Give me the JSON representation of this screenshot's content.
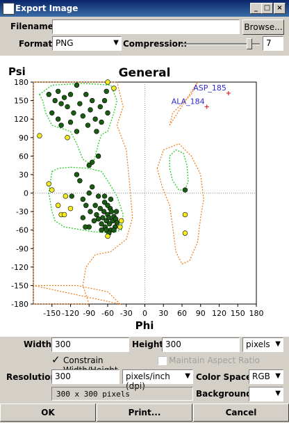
{
  "window": {
    "title": "Export Image",
    "icon": "app-icon"
  },
  "filename": {
    "label": "Filename:",
    "value": "",
    "browse_label": "Browse..."
  },
  "format": {
    "label": "Format:",
    "value": "PNG",
    "compression_label": "Compression:",
    "compression_value": "7",
    "compression_fraction": 0.9
  },
  "plot": {
    "title": "General",
    "ylabel": "Psi",
    "xlabel": "Phi",
    "xticks": [
      "-150",
      "-120",
      "-90",
      "-60",
      "-30",
      "0",
      "30",
      "60",
      "90",
      "120",
      "150",
      "180"
    ],
    "yticks": [
      "180",
      "150",
      "120",
      "90",
      "60",
      "30",
      "0",
      "-30",
      "-60",
      "-90",
      "-120",
      "-150",
      "-180"
    ],
    "outliers": [
      {
        "label": "ASP_185",
        "phi": 135,
        "psi": 162
      },
      {
        "label": "ALA_184",
        "phi": 100,
        "psi": 140
      }
    ]
  },
  "chart_data": {
    "type": "scatter",
    "title": "General",
    "xlabel": "Phi",
    "ylabel": "Psi",
    "xlim": [
      -180,
      180
    ],
    "ylim": [
      -180,
      180
    ],
    "grid": false,
    "colors": {
      "favored": "#1a5c12",
      "allowed": "#f4ea22",
      "outlier": "#e02020",
      "contour_core": "#22cc22",
      "contour_allowed": "#f08020"
    },
    "series": [
      {
        "name": "",
        "category": "favored",
        "points": [
          [
            -155,
            160
          ],
          [
            -145,
            150
          ],
          [
            -150,
            130
          ],
          [
            -140,
            165
          ],
          [
            -135,
            145
          ],
          [
            -130,
            155
          ],
          [
            -125,
            140
          ],
          [
            -120,
            160
          ],
          [
            -115,
            130
          ],
          [
            -110,
            175
          ],
          [
            -105,
            145
          ],
          [
            -100,
            125
          ],
          [
            -95,
            160
          ],
          [
            -92,
            110
          ],
          [
            -88,
            135
          ],
          [
            -85,
            150
          ],
          [
            -80,
            120
          ],
          [
            -78,
            100
          ],
          [
            -72,
            140
          ],
          [
            -70,
            115
          ],
          [
            -65,
            150
          ],
          [
            -62,
            165
          ],
          [
            -60,
            130
          ],
          [
            -75,
            60
          ],
          [
            -85,
            50
          ],
          [
            -90,
            45
          ],
          [
            -140,
            120
          ],
          [
            -135,
            110
          ],
          [
            -120,
            115
          ],
          [
            -110,
            100
          ],
          [
            -118,
            -5
          ],
          [
            -105,
            20
          ],
          [
            -100,
            -10
          ],
          [
            -95,
            -20
          ],
          [
            -90,
            0
          ],
          [
            -88,
            -30
          ],
          [
            -85,
            10
          ],
          [
            -82,
            -45
          ],
          [
            -80,
            -20
          ],
          [
            -78,
            -35
          ],
          [
            -75,
            -5
          ],
          [
            -72,
            -25
          ],
          [
            -70,
            -50
          ],
          [
            -68,
            -40
          ],
          [
            -66,
            -30
          ],
          [
            -65,
            -15
          ],
          [
            -64,
            -55
          ],
          [
            -62,
            -45
          ],
          [
            -60,
            -35
          ],
          [
            -58,
            -40
          ],
          [
            -57,
            -50
          ],
          [
            -56,
            -25
          ],
          [
            -55,
            -60
          ],
          [
            -54,
            -30
          ],
          [
            -52,
            -45
          ],
          [
            -50,
            -38
          ],
          [
            -48,
            -55
          ],
          [
            -47,
            -42
          ],
          [
            -46,
            -30
          ],
          [
            -45,
            -48
          ],
          [
            -62,
            -60
          ],
          [
            -70,
            -60
          ],
          [
            -90,
            -55
          ],
          [
            -65,
            -5
          ],
          [
            -60,
            -20
          ],
          [
            -55,
            -10
          ],
          [
            -75,
            -42
          ],
          [
            -50,
            -60
          ],
          [
            -58,
            -65
          ],
          [
            65,
            5
          ],
          [
            -110,
            30
          ],
          [
            -100,
            -40
          ],
          [
            -96,
            -55
          ]
        ]
      },
      {
        "name": "",
        "category": "allowed",
        "points": [
          [
            -170,
            93
          ],
          [
            -155,
            15
          ],
          [
            -150,
            5
          ],
          [
            -140,
            -20
          ],
          [
            -135,
            -35
          ],
          [
            -130,
            -35
          ],
          [
            -128,
            -5
          ],
          [
            -120,
            -25
          ],
          [
            -125,
            90
          ],
          [
            -60,
            180
          ],
          [
            -50,
            170
          ],
          [
            -40,
            -55
          ],
          [
            -38,
            -45
          ],
          [
            -60,
            -70
          ],
          [
            65,
            -35
          ],
          [
            65,
            -65
          ]
        ]
      },
      {
        "name": "",
        "category": "outlier",
        "points": [
          [
            135,
            162
          ],
          [
            100,
            140
          ]
        ]
      }
    ]
  },
  "width": {
    "label": "Width:",
    "value": "300"
  },
  "height": {
    "label": "Height:",
    "value": "300",
    "unit": "pixels"
  },
  "constrain": {
    "label": "Constrain Width/Height",
    "checked": true
  },
  "aspect": {
    "label": "Maintain Aspect Ratio",
    "checked": false
  },
  "resolution": {
    "label": "Resolution:",
    "value": "300",
    "unit": "pixels/inch (dpi)"
  },
  "colorspace": {
    "label": "Color Space:",
    "value": "RGB"
  },
  "size_readout": "300 x 300 pixels",
  "background": {
    "label": "Background:",
    "value": ""
  },
  "buttons": {
    "ok": "OK",
    "print": "Print...",
    "cancel": "Cancel"
  }
}
